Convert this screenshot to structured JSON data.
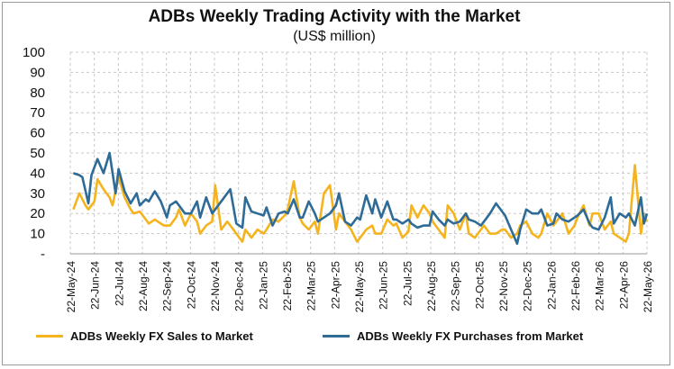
{
  "chart_data": {
    "type": "line",
    "title": "ADBs Weekly Trading Activity with the Market",
    "subtitle": "(US$ million)",
    "ylim": [
      0,
      100
    ],
    "yticks": [
      "-",
      "10",
      "20",
      "30",
      "40",
      "50",
      "60",
      "70",
      "80",
      "90",
      "100"
    ],
    "xtick_labels": [
      "22-May-24",
      "22-Jun-24",
      "22-Jul-24",
      "22-Aug-24",
      "22-Sep-24",
      "22-Oct-24",
      "22-Nov-24",
      "22-Dec-24",
      "22-Jan-25",
      "22-Feb-25",
      "22-Mar-25",
      "22-Apr-25",
      "22-May-25",
      "22-Jun-25",
      "22-Jul-25",
      "22-Aug-25",
      "22-Sep-25",
      "22-Oct-25",
      "22-Nov-25",
      "22-Dec-25",
      "22-Jan-26",
      "22-Feb-26",
      "22-Mar-26",
      "22-Apr-26",
      "22-May-26"
    ],
    "grid": true,
    "legend_position": "bottom",
    "series": [
      {
        "name": "ADBs Weekly FX Sales to Market",
        "color": "#F5B41E",
        "values": [
          22,
          30,
          24,
          22,
          26,
          37,
          32,
          28,
          24,
          38,
          28,
          22,
          20,
          21,
          17,
          15,
          17,
          15,
          14,
          14,
          18,
          22,
          14,
          20,
          16,
          10,
          14,
          16,
          34,
          12,
          16,
          14,
          10,
          6,
          12,
          8,
          12,
          10,
          12,
          17,
          16,
          19,
          22,
          36,
          18,
          15,
          12,
          16,
          10,
          30,
          34,
          12,
          20,
          16,
          12,
          6,
          8,
          12,
          14,
          10,
          10,
          17,
          14,
          15,
          8,
          11,
          24,
          18,
          24,
          20,
          16,
          12,
          8,
          24,
          20,
          12,
          20,
          10,
          8,
          12,
          14,
          10,
          10,
          12,
          12,
          8,
          10,
          14,
          16,
          10,
          8,
          10,
          20,
          14,
          16,
          20,
          10,
          14,
          18,
          24,
          14,
          20,
          20,
          12,
          16,
          10,
          8,
          6,
          10,
          44,
          10,
          20,
          16
        ],
        "points": [
          [
            1,
            22
          ],
          [
            3,
            30
          ],
          [
            5,
            24
          ],
          [
            6,
            22
          ],
          [
            8,
            26
          ],
          [
            9,
            37
          ],
          [
            11,
            32
          ],
          [
            13,
            28
          ],
          [
            14,
            24
          ],
          [
            16,
            38
          ],
          [
            18,
            28
          ],
          [
            20,
            22
          ],
          [
            21,
            20
          ],
          [
            23,
            21
          ],
          [
            25,
            17
          ],
          [
            26,
            15
          ],
          [
            28,
            17
          ],
          [
            30,
            15
          ],
          [
            31,
            14
          ],
          [
            33,
            14
          ],
          [
            35,
            18
          ],
          [
            36,
            22
          ],
          [
            38,
            14
          ],
          [
            40,
            20
          ],
          [
            42,
            16
          ],
          [
            43,
            10
          ],
          [
            45,
            14
          ],
          [
            47,
            16
          ],
          [
            48,
            34
          ],
          [
            50,
            12
          ],
          [
            52,
            16
          ],
          [
            53,
            14
          ],
          [
            55,
            10
          ],
          [
            57,
            6
          ],
          [
            58,
            12
          ],
          [
            60,
            8
          ],
          [
            62,
            12
          ],
          [
            64,
            10
          ],
          [
            65,
            12
          ],
          [
            67,
            17
          ],
          [
            69,
            16
          ],
          [
            71,
            19
          ],
          [
            72,
            22
          ],
          [
            74,
            36
          ],
          [
            76,
            18
          ],
          [
            77,
            15
          ],
          [
            79,
            12
          ],
          [
            81,
            16
          ],
          [
            82,
            10
          ],
          [
            84,
            30
          ],
          [
            86,
            34
          ],
          [
            88,
            12
          ],
          [
            89,
            20
          ],
          [
            91,
            16
          ],
          [
            93,
            12
          ],
          [
            95,
            6
          ],
          [
            96,
            8
          ],
          [
            98,
            12
          ],
          [
            100,
            14
          ],
          [
            101,
            10
          ],
          [
            103,
            10
          ],
          [
            105,
            17
          ],
          [
            107,
            14
          ],
          [
            108,
            15
          ],
          [
            110,
            8
          ],
          [
            112,
            11
          ],
          [
            113,
            24
          ],
          [
            115,
            18
          ],
          [
            117,
            24
          ],
          [
            119,
            20
          ],
          [
            120,
            16
          ],
          [
            122,
            12
          ],
          [
            124,
            8
          ],
          [
            125,
            24
          ],
          [
            127,
            20
          ],
          [
            129,
            12
          ],
          [
            131,
            20
          ],
          [
            132,
            10
          ],
          [
            134,
            8
          ],
          [
            136,
            12
          ],
          [
            137,
            14
          ],
          [
            139,
            10
          ],
          [
            141,
            10
          ],
          [
            143,
            12
          ],
          [
            144,
            12
          ],
          [
            146,
            8
          ],
          [
            148,
            10
          ],
          [
            149,
            14
          ],
          [
            151,
            16
          ],
          [
            153,
            10
          ],
          [
            155,
            8
          ],
          [
            156,
            10
          ],
          [
            158,
            20
          ],
          [
            160,
            14
          ],
          [
            161,
            16
          ],
          [
            163,
            20
          ],
          [
            165,
            10
          ],
          [
            167,
            14
          ],
          [
            168,
            18
          ],
          [
            170,
            24
          ],
          [
            172,
            14
          ],
          [
            173,
            20
          ],
          [
            175,
            20
          ],
          [
            177,
            12
          ],
          [
            179,
            16
          ],
          [
            180,
            10
          ],
          [
            182,
            8
          ],
          [
            184,
            6
          ],
          [
            185,
            10
          ],
          [
            187,
            44
          ],
          [
            189,
            10
          ],
          [
            190,
            20
          ],
          [
            191,
            16
          ]
        ]
      },
      {
        "name": "ADBs Weekly FX Purchases from Market",
        "color": "#2E6B96",
        "points": [
          [
            1,
            40
          ],
          [
            3,
            39
          ],
          [
            4,
            38
          ],
          [
            6,
            25
          ],
          [
            7,
            39
          ],
          [
            9,
            47
          ],
          [
            11,
            40
          ],
          [
            13,
            50
          ],
          [
            15,
            30
          ],
          [
            16,
            42
          ],
          [
            18,
            31
          ],
          [
            20,
            25
          ],
          [
            22,
            30
          ],
          [
            23,
            24
          ],
          [
            25,
            27
          ],
          [
            26,
            26
          ],
          [
            28,
            31
          ],
          [
            30,
            26
          ],
          [
            32,
            18
          ],
          [
            33,
            24
          ],
          [
            35,
            26
          ],
          [
            36,
            24
          ],
          [
            38,
            20
          ],
          [
            40,
            20
          ],
          [
            42,
            26
          ],
          [
            43,
            18
          ],
          [
            45,
            28
          ],
          [
            47,
            20
          ],
          [
            48,
            22
          ],
          [
            50,
            26
          ],
          [
            52,
            30
          ],
          [
            53,
            32
          ],
          [
            55,
            15
          ],
          [
            57,
            13
          ],
          [
            58,
            28
          ],
          [
            60,
            21
          ],
          [
            62,
            20
          ],
          [
            64,
            19
          ],
          [
            65,
            23
          ],
          [
            67,
            14
          ],
          [
            69,
            20
          ],
          [
            71,
            21
          ],
          [
            72,
            20
          ],
          [
            74,
            27
          ],
          [
            76,
            18
          ],
          [
            77,
            18
          ],
          [
            79,
            26
          ],
          [
            81,
            20
          ],
          [
            82,
            16
          ],
          [
            84,
            18
          ],
          [
            86,
            20
          ],
          [
            88,
            24
          ],
          [
            89,
            30
          ],
          [
            91,
            16
          ],
          [
            93,
            14
          ],
          [
            95,
            18
          ],
          [
            96,
            17
          ],
          [
            98,
            29
          ],
          [
            100,
            20
          ],
          [
            101,
            27
          ],
          [
            103,
            18
          ],
          [
            105,
            26
          ],
          [
            107,
            17
          ],
          [
            108,
            17
          ],
          [
            110,
            15
          ],
          [
            112,
            17
          ],
          [
            113,
            15
          ],
          [
            115,
            13
          ],
          [
            117,
            14
          ],
          [
            119,
            14
          ],
          [
            120,
            21
          ],
          [
            122,
            17
          ],
          [
            124,
            14
          ],
          [
            125,
            17
          ],
          [
            127,
            15
          ],
          [
            129,
            16
          ],
          [
            131,
            20
          ],
          [
            132,
            17
          ],
          [
            134,
            16
          ],
          [
            136,
            14
          ],
          [
            137,
            16
          ],
          [
            139,
            20
          ],
          [
            141,
            25
          ],
          [
            143,
            21
          ],
          [
            144,
            19
          ],
          [
            146,
            12
          ],
          [
            148,
            5
          ],
          [
            149,
            12
          ],
          [
            151,
            22
          ],
          [
            153,
            20
          ],
          [
            155,
            20
          ],
          [
            156,
            22
          ],
          [
            158,
            14
          ],
          [
            160,
            15
          ],
          [
            161,
            20
          ],
          [
            163,
            17
          ],
          [
            165,
            16
          ],
          [
            167,
            18
          ],
          [
            168,
            19
          ],
          [
            170,
            22
          ],
          [
            172,
            15
          ],
          [
            173,
            13
          ],
          [
            175,
            12
          ],
          [
            177,
            18
          ],
          [
            179,
            28
          ],
          [
            180,
            15
          ],
          [
            182,
            20
          ],
          [
            184,
            18
          ],
          [
            185,
            20
          ],
          [
            187,
            14
          ],
          [
            189,
            28
          ],
          [
            190,
            15
          ],
          [
            191,
            20
          ]
        ]
      }
    ]
  }
}
